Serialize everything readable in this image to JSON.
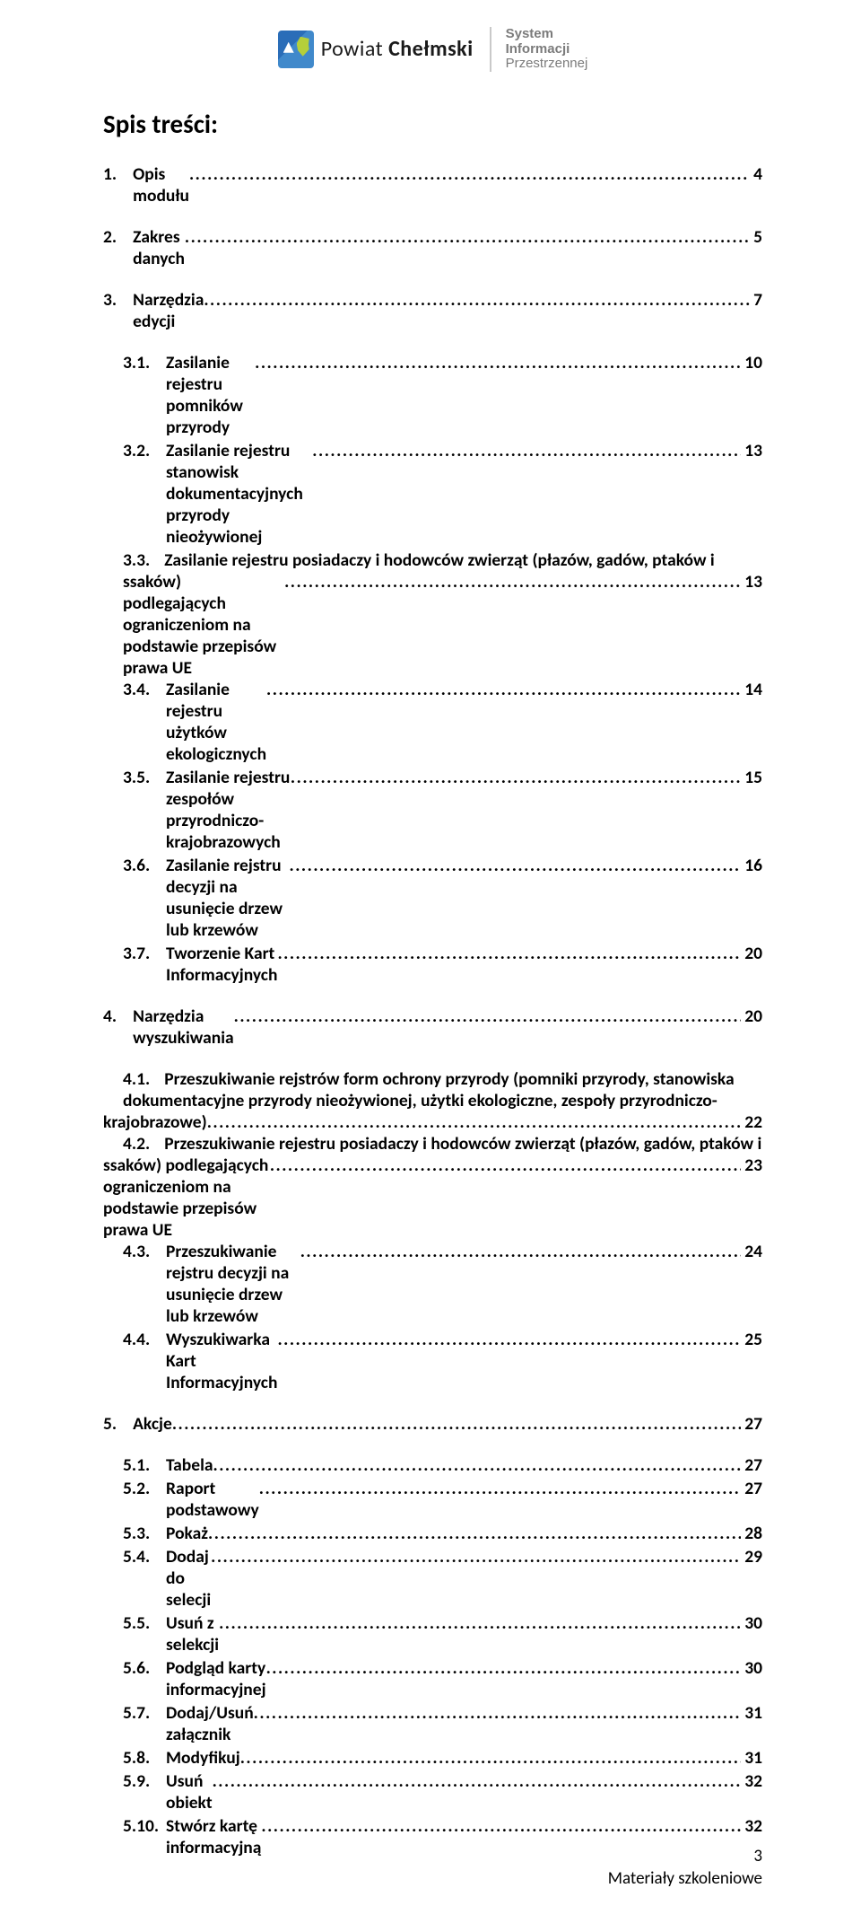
{
  "header": {
    "logo_text_plain": "Powiat ",
    "logo_text_bold": "Chełmski",
    "sip_line1": "System",
    "sip_line2": "Informacji",
    "sip_line3": "Przestrzennej"
  },
  "toc_title": "Spis treści:",
  "toc": [
    {
      "level": 0,
      "num": "1.",
      "title": "Opis modułu",
      "page": "4"
    },
    {
      "level": 0,
      "num": "2.",
      "title": "Zakres danych",
      "page": "5"
    },
    {
      "level": 0,
      "num": "3.",
      "title": "Narzędzia edycji",
      "page": "7",
      "children": [
        {
          "num": "3.1.",
          "title": "Zasilanie rejestru pomników przyrody",
          "page": "10"
        },
        {
          "num": "3.2.",
          "title": "Zasilanie rejestru stanowisk dokumentacyjnych przyrody nieożywionej",
          "page": "13"
        },
        {
          "num": "3.3.",
          "multiline": true,
          "lead": "Zasilanie rejestru posiadaczy i hodowców zwierząt (płazów, gadów, ptaków i",
          "tail": "ssaków) podlegających ograniczeniom na podstawie przepisów prawa UE",
          "page": "13"
        },
        {
          "num": "3.4.",
          "title": "Zasilanie rejestru użytków ekologicznych",
          "page": "14"
        },
        {
          "num": "3.5.",
          "title": "Zasilanie rejestru zespołów przyrodniczo-krajobrazowych",
          "page": "15"
        },
        {
          "num": "3.6.",
          "title": "Zasilanie rejstru decyzji na usunięcie drzew lub krzewów",
          "page": "16"
        },
        {
          "num": "3.7.",
          "title": "Tworzenie Kart Informacyjnych",
          "page": "20"
        }
      ]
    },
    {
      "level": 0,
      "num": "4.",
      "title": "Narzędzia wyszukiwania",
      "page": "20",
      "children": [
        {
          "num": "4.1.",
          "multiline": true,
          "lead": "Przeszukiwanie rejstrów form ochrony przyrody (pomniki przyrody, stanowiska dokumentacyjne przyrody nieożywionej, użytki ekologiczne, zespoły przyrodniczo-",
          "tail": "krajobrazowe)",
          "page": "22",
          "tail_no_indent": true
        },
        {
          "num": "4.2.",
          "multiline": true,
          "lead": "Przeszukiwanie rejestru posiadaczy i hodowców zwierząt (płazów, gadów, ptaków i",
          "tail": "ssaków) podlegających ograniczeniom na podstawie przepisów prawa UE",
          "page": "23",
          "tail_no_indent": true
        },
        {
          "num": "4.3.",
          "title": "Przeszukiwanie rejstru decyzji na usunięcie drzew lub krzewów",
          "page": "24"
        },
        {
          "num": "4.4.",
          "title": "Wyszukiwarka Kart Informacyjnych",
          "page": "25"
        }
      ]
    },
    {
      "level": 0,
      "num": "5.",
      "title": "Akcje",
      "page": "27",
      "children": [
        {
          "num": "5.1.",
          "title": "Tabela",
          "page": "27"
        },
        {
          "num": "5.2.",
          "title": "Raport podstawowy",
          "page": "27"
        },
        {
          "num": "5.3.",
          "title": "Pokaż",
          "page": "28"
        },
        {
          "num": "5.4.",
          "title": "Dodaj do selecji",
          "page": "29"
        },
        {
          "num": "5.5.",
          "title": "Usuń z selekcji",
          "page": "30"
        },
        {
          "num": "5.6.",
          "title": "Podgląd karty informacyjnej",
          "page": "30"
        },
        {
          "num": "5.7.",
          "title": "Dodaj/Usuń załącznik",
          "page": "31"
        },
        {
          "num": "5.8.",
          "title": "Modyfikuj",
          "page": "31"
        },
        {
          "num": "5.9.",
          "title": "Usuń obiekt",
          "page": "32"
        },
        {
          "num": "5.10.",
          "title": "Stwórz kartę informacyjną",
          "page": "32"
        }
      ]
    }
  ],
  "footer": {
    "page_number": "3",
    "label": "Materiały szkoleniowe"
  }
}
